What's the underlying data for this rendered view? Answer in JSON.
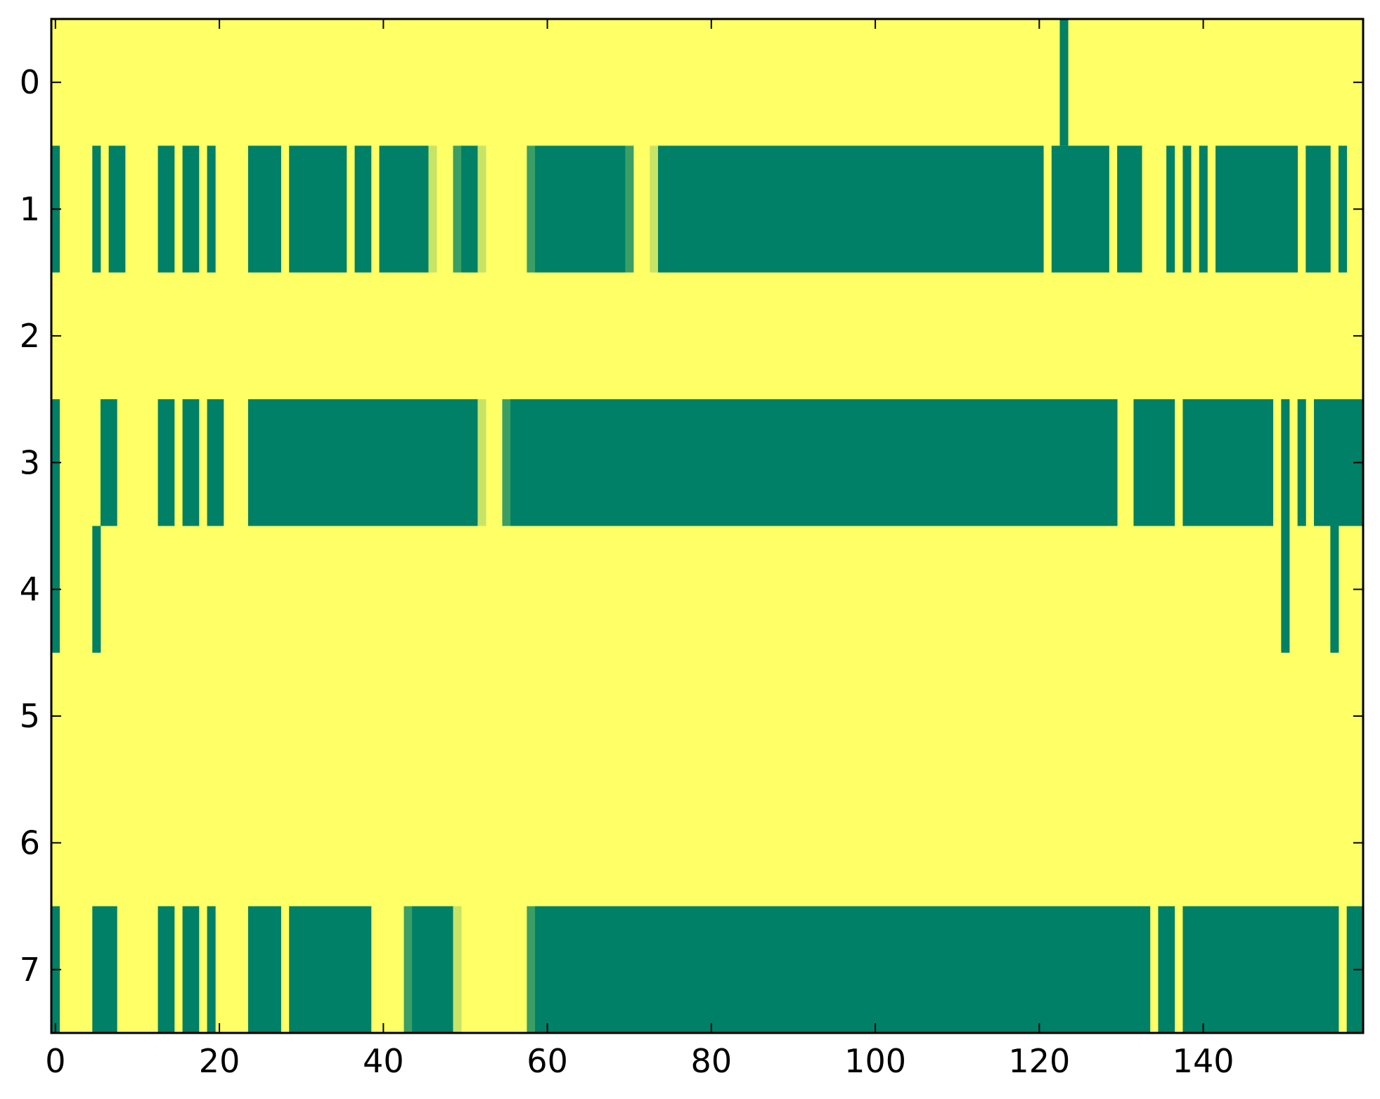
{
  "chart_data": {
    "type": "heatmap",
    "title": "",
    "xlabel": "",
    "ylabel": "",
    "n_cols": 160,
    "n_rows": 8,
    "xlim": [
      -0.5,
      159.5
    ],
    "ylim": [
      -0.5,
      7.5
    ],
    "y_inverted": true,
    "grid": false,
    "colormap": "summer_r",
    "colors": {
      "background_value_color": "#ffff66",
      "high_value_color": "#008066",
      "light_mid_color": "#c8e466",
      "dark_mid_color": "#3a9e66"
    },
    "background_value": 0,
    "x_ticks": [
      0,
      20,
      40,
      60,
      80,
      100,
      120,
      140
    ],
    "x_tick_labels": [
      "0",
      "20",
      "40",
      "60",
      "80",
      "100",
      "120",
      "140"
    ],
    "y_ticks": [
      0,
      1,
      2,
      3,
      4,
      5,
      6,
      7
    ],
    "y_tick_labels": [
      "0",
      "1",
      "2",
      "3",
      "4",
      "5",
      "6",
      "7"
    ],
    "rows": [
      {
        "row": 0,
        "runs": [
          [
            123,
            123,
            1
          ]
        ]
      },
      {
        "row": 1,
        "runs": [
          [
            0,
            0,
            1
          ],
          [
            5,
            5,
            1
          ],
          [
            7,
            8,
            1
          ],
          [
            13,
            14,
            1
          ],
          [
            16,
            17,
            1
          ],
          [
            19,
            19,
            1
          ],
          [
            24,
            27,
            1
          ],
          [
            29,
            35,
            1
          ],
          [
            37,
            38,
            1
          ],
          [
            40,
            45,
            1
          ],
          [
            46,
            46,
            0.2
          ],
          [
            49,
            49,
            0.8
          ],
          [
            50,
            51,
            1
          ],
          [
            52,
            52,
            0.2
          ],
          [
            58,
            58,
            0.8
          ],
          [
            59,
            69,
            1
          ],
          [
            70,
            70,
            0.8
          ],
          [
            73,
            73,
            0.2
          ],
          [
            74,
            120,
            1
          ],
          [
            122,
            128,
            1
          ],
          [
            130,
            132,
            1
          ],
          [
            136,
            136,
            1
          ],
          [
            138,
            138,
            1
          ],
          [
            140,
            140,
            1
          ],
          [
            142,
            151,
            1
          ],
          [
            153,
            155,
            1
          ],
          [
            157,
            157,
            1
          ]
        ]
      },
      {
        "row": 2,
        "runs": []
      },
      {
        "row": 3,
        "runs": [
          [
            0,
            0,
            1
          ],
          [
            6,
            7,
            1
          ],
          [
            13,
            14,
            1
          ],
          [
            16,
            17,
            1
          ],
          [
            19,
            20,
            1
          ],
          [
            24,
            51,
            1
          ],
          [
            52,
            52,
            0.2
          ],
          [
            55,
            55,
            0.8
          ],
          [
            56,
            129,
            1
          ],
          [
            132,
            136,
            1
          ],
          [
            138,
            148,
            1
          ],
          [
            150,
            150,
            1
          ],
          [
            152,
            152,
            1
          ],
          [
            154,
            159,
            1
          ]
        ]
      },
      {
        "row": 4,
        "runs": [
          [
            0,
            0,
            1
          ],
          [
            5,
            5,
            1
          ],
          [
            150,
            150,
            1
          ],
          [
            156,
            156,
            1
          ]
        ]
      },
      {
        "row": 5,
        "runs": []
      },
      {
        "row": 6,
        "runs": []
      },
      {
        "row": 7,
        "runs": [
          [
            0,
            0,
            1
          ],
          [
            5,
            7,
            1
          ],
          [
            13,
            14,
            1
          ],
          [
            16,
            17,
            1
          ],
          [
            19,
            19,
            1
          ],
          [
            24,
            27,
            1
          ],
          [
            29,
            38,
            1
          ],
          [
            43,
            43,
            0.8
          ],
          [
            44,
            48,
            1
          ],
          [
            49,
            49,
            0.2
          ],
          [
            58,
            58,
            0.8
          ],
          [
            59,
            133,
            1
          ],
          [
            135,
            136,
            1
          ],
          [
            138,
            156,
            1
          ],
          [
            158,
            159,
            1
          ]
        ]
      }
    ]
  }
}
